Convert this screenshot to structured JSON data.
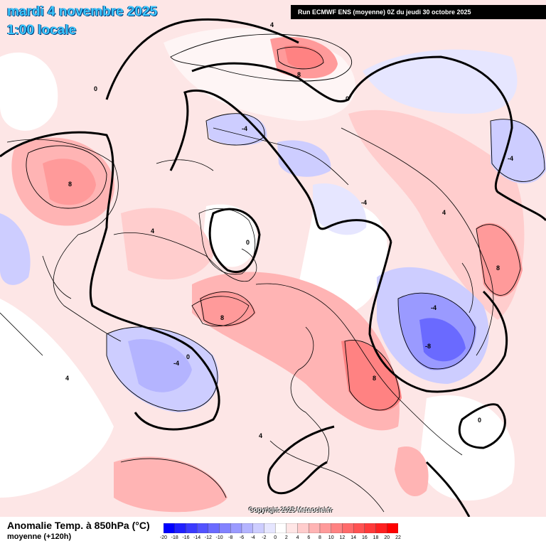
{
  "header": {
    "date": "mardi 4 novembre 2025",
    "time": "1:00 locale",
    "run_info": "Run ECMWF ENS (moyenne) 0Z du jeudi 30 octobre 2025",
    "copyright": "Copyright 2025 Meteociel.fr"
  },
  "legend": {
    "title": "Anomalie Temp. à 850hPa (°C)",
    "subtitle": "moyenne   (+120h)",
    "ticks": [
      "-20",
      "-18",
      "-16",
      "-14",
      "-12",
      "-10",
      "-8",
      "-6",
      "-4",
      "-2",
      "0",
      "2",
      "4",
      "6",
      "8",
      "10",
      "12",
      "14",
      "16",
      "18",
      "20",
      "22"
    ],
    "colors": [
      "#0000ff",
      "#2020ff",
      "#3a3aff",
      "#5252ff",
      "#6a6aff",
      "#8282ff",
      "#9a9aff",
      "#b4b4ff",
      "#cdcdff",
      "#e6e6ff",
      "#ffffff",
      "#ffe6e6",
      "#ffcdcd",
      "#ffb4b4",
      "#ff9a9a",
      "#ff8282",
      "#ff6a6a",
      "#ff5252",
      "#ff3a3a",
      "#ff2020",
      "#ff0000"
    ]
  },
  "contour_labels": [
    "4",
    "8",
    "0",
    "-4",
    "4",
    "8",
    "0",
    "-4",
    "-8",
    "4",
    "8",
    "0",
    "-4",
    "4"
  ]
}
